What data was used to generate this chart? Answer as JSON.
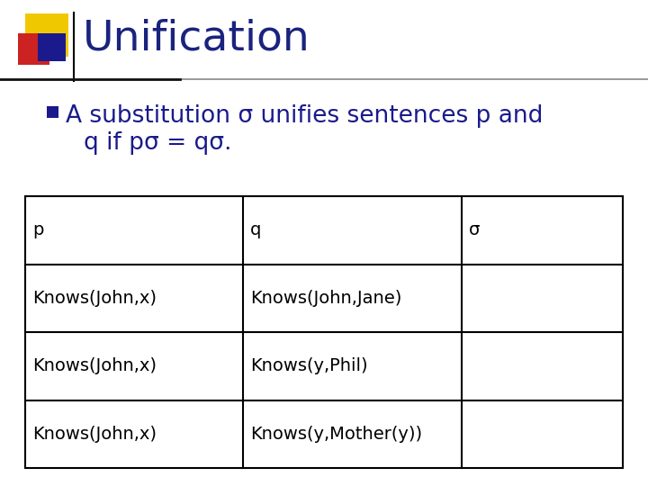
{
  "title": "Unification",
  "title_color": "#1a237e",
  "title_fontsize": 34,
  "bg_color": "#ffffff",
  "bullet_text_line1": "A substitution σ unifies sentences p and",
  "bullet_text_line2": "q if pσ = qσ.",
  "bullet_color": "#1a1a8c",
  "bullet_marker_color": "#1a1a8c",
  "table_headers": [
    "p",
    "q",
    "σ"
  ],
  "table_rows": [
    [
      "Knows(John,x)",
      "Knows(John,Jane)",
      ""
    ],
    [
      "Knows(John,x)",
      "Knows(y,Phil)",
      ""
    ],
    [
      "Knows(John,x)",
      "Knows(y,Mother(y))",
      ""
    ]
  ],
  "table_font_color": "#000000",
  "table_fontsize": 14,
  "header_fontsize": 14,
  "deco_yellow": "#f0c800",
  "deco_red": "#cc2222",
  "deco_blue": "#1a1a8c",
  "line_color": "#444444"
}
